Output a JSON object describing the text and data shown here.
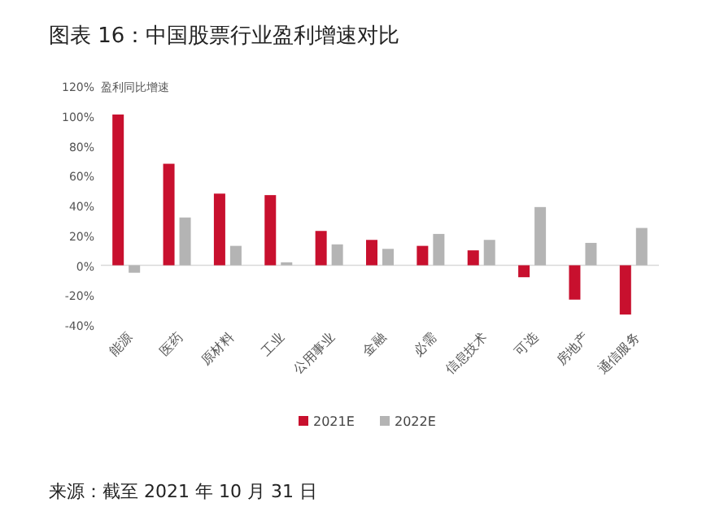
{
  "chart_data": {
    "type": "bar",
    "title": "图表 16：中国股票行业盈利增速对比",
    "ylabel": "盈利同比增速",
    "categories": [
      "能源",
      "医药",
      "原材料",
      "工业",
      "公用事业",
      "金融",
      "必需",
      "信息技术",
      "可选",
      "房地产",
      "通信服务"
    ],
    "series": [
      {
        "name": "2021E",
        "color": "#c8102e",
        "values": [
          101,
          68,
          48,
          47,
          23,
          17,
          13,
          10,
          -8,
          -23,
          -33
        ]
      },
      {
        "name": "2022E",
        "color": "#b4b4b4",
        "values": [
          -5,
          32,
          13,
          2,
          14,
          11,
          21,
          17,
          39,
          15,
          25
        ]
      }
    ],
    "ylim": [
      -40,
      120
    ],
    "yticks": [
      {
        "value": -40,
        "label": "-40%"
      },
      {
        "value": -20,
        "label": "-20%"
      },
      {
        "value": 0,
        "label": "0%"
      },
      {
        "value": 20,
        "label": "20%"
      },
      {
        "value": 40,
        "label": "40%"
      },
      {
        "value": 60,
        "label": "60%"
      },
      {
        "value": 80,
        "label": "80%"
      },
      {
        "value": 100,
        "label": "100%"
      },
      {
        "value": 120,
        "label": "120%"
      }
    ],
    "legend": "bottom",
    "annotations": [
      "来源：截至 2021 年 10 月 31 日"
    ]
  }
}
